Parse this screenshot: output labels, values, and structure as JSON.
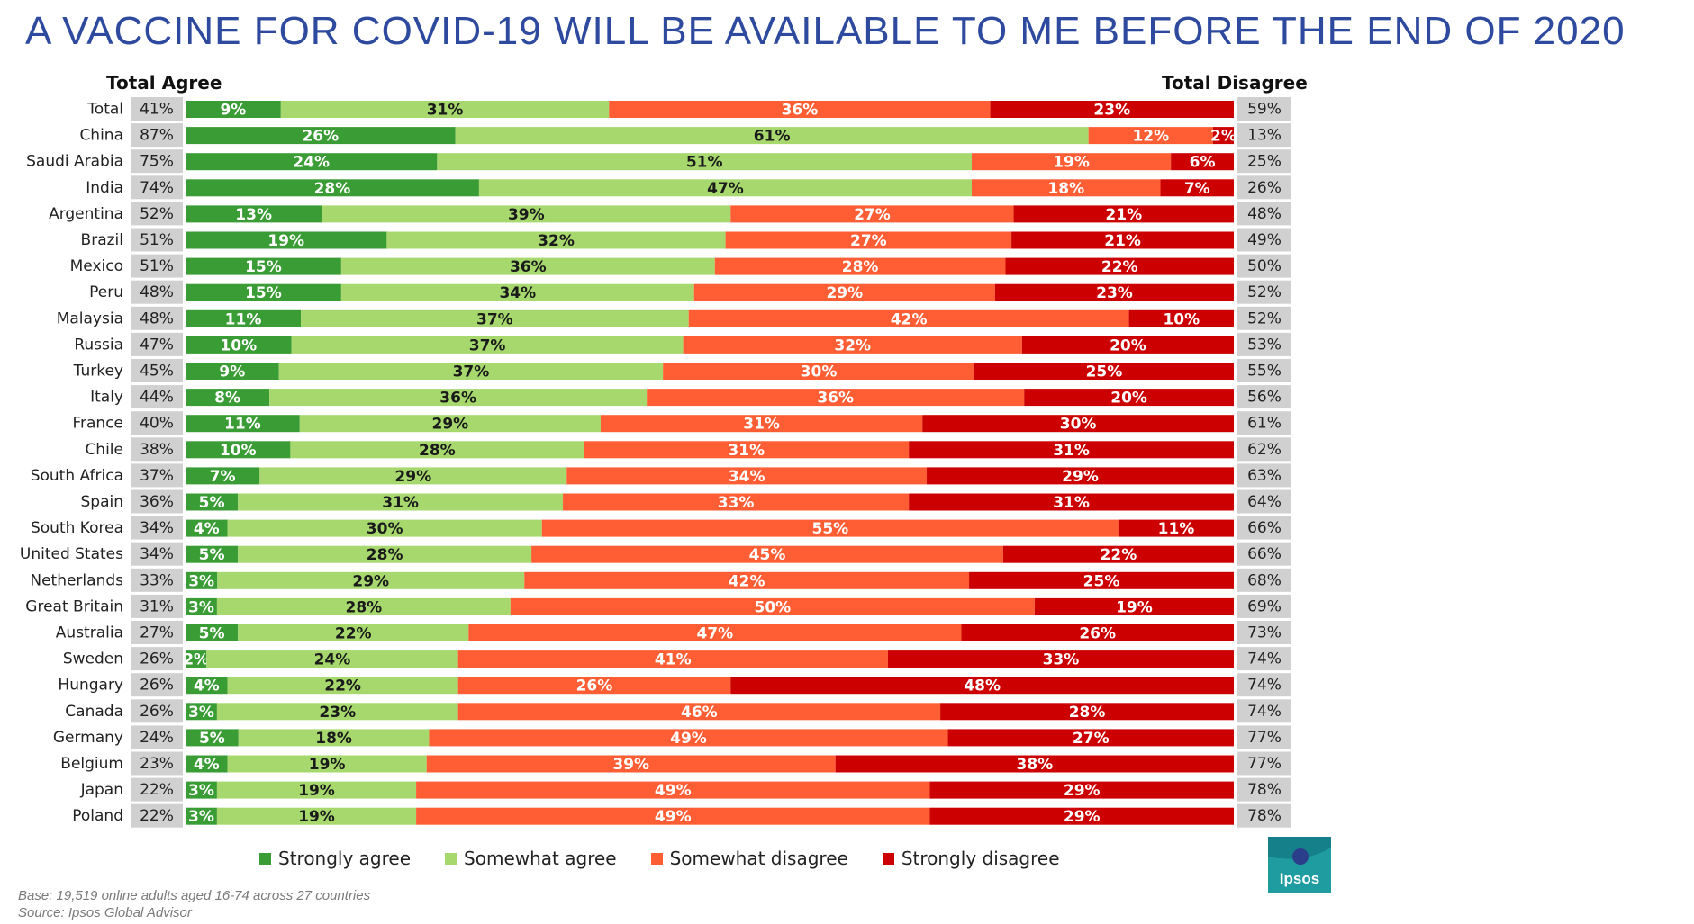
{
  "title": "A VACCINE FOR COVID-19 WILL BE AVAILABLE TO ME BEFORE THE END OF 2020",
  "headers": {
    "total_agree": "Total Agree",
    "total_disagree": "Total Disagree"
  },
  "logo_text": "Ipsos",
  "footnote": {
    "base": "Base: 19,519 online adults aged 16-74 across 27 countries",
    "source": "Source: Ipsos Global Advisor"
  },
  "colors": {
    "strongly_agree": "#3a9c35",
    "somewhat_agree": "#a6d86e",
    "somewhat_disagree": "#ff5e35",
    "strongly_disagree": "#cc0000",
    "total_box": "#d0d0d0",
    "title": "#2e4a9e",
    "logo": "#1e9ca0"
  },
  "chart_data": {
    "type": "bar",
    "orientation": "horizontal",
    "stacked": true,
    "title": "A VACCINE FOR COVID-19 WILL BE AVAILABLE TO ME BEFORE THE END OF 2020",
    "legend_position": "bottom",
    "categories": [
      "Total",
      "China",
      "Saudi Arabia",
      "India",
      "Argentina",
      "Brazil",
      "Mexico",
      "Peru",
      "Malaysia",
      "Russia",
      "Turkey",
      "Italy",
      "France",
      "Chile",
      "South Africa",
      "Spain",
      "South Korea",
      "United States",
      "Netherlands",
      "Great Britain",
      "Australia",
      "Sweden",
      "Hungary",
      "Canada",
      "Germany",
      "Belgium",
      "Japan",
      "Poland"
    ],
    "series": [
      {
        "name": "Strongly agree",
        "values": [
          9,
          26,
          24,
          28,
          13,
          19,
          15,
          15,
          11,
          10,
          9,
          8,
          11,
          10,
          7,
          5,
          4,
          5,
          3,
          3,
          5,
          2,
          4,
          3,
          5,
          4,
          3,
          3
        ]
      },
      {
        "name": "Somewhat agree",
        "values": [
          31,
          61,
          51,
          47,
          39,
          32,
          36,
          34,
          37,
          37,
          37,
          36,
          29,
          28,
          29,
          31,
          30,
          28,
          29,
          28,
          22,
          24,
          22,
          23,
          18,
          19,
          19,
          19
        ]
      },
      {
        "name": "Somewhat disagree",
        "values": [
          36,
          12,
          19,
          18,
          27,
          27,
          28,
          29,
          42,
          32,
          30,
          36,
          31,
          31,
          34,
          33,
          55,
          45,
          42,
          50,
          47,
          41,
          26,
          46,
          49,
          39,
          49,
          49
        ]
      },
      {
        "name": "Strongly disagree",
        "values": [
          23,
          2,
          6,
          7,
          21,
          21,
          22,
          23,
          10,
          20,
          25,
          20,
          30,
          31,
          29,
          31,
          11,
          22,
          25,
          19,
          26,
          33,
          48,
          28,
          27,
          38,
          29,
          29
        ]
      }
    ],
    "total_agree": [
      "41%",
      "87%",
      "75%",
      "74%",
      "52%",
      "51%",
      "51%",
      "48%",
      "48%",
      "47%",
      "45%",
      "44%",
      "40%",
      "38%",
      "37%",
      "36%",
      "34%",
      "34%",
      "33%",
      "31%",
      "27%",
      "26%",
      "26%",
      "26%",
      "24%",
      "23%",
      "22%",
      "22%"
    ],
    "total_disagree": [
      "59%",
      "13%",
      "25%",
      "26%",
      "48%",
      "49%",
      "50%",
      "52%",
      "52%",
      "53%",
      "55%",
      "56%",
      "61%",
      "62%",
      "63%",
      "64%",
      "66%",
      "66%",
      "68%",
      "69%",
      "73%",
      "74%",
      "74%",
      "74%",
      "77%",
      "77%",
      "78%",
      "78%"
    ]
  }
}
